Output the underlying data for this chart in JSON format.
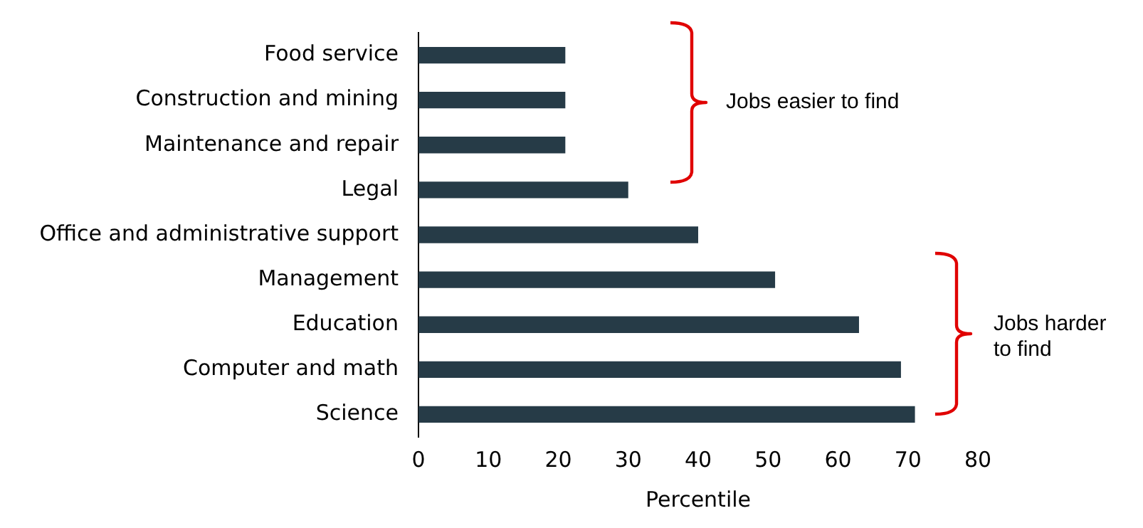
{
  "chart_data": {
    "type": "bar",
    "orientation": "horizontal",
    "xlabel": "Percentile",
    "categories": [
      "Food service",
      "Construction and mining",
      "Maintenance and repair",
      "Legal",
      "Office and administrative support",
      "Management",
      "Education",
      "Computer and math",
      "Science"
    ],
    "values": [
      21,
      21,
      21,
      30,
      40,
      51,
      63,
      69,
      71
    ],
    "color": "#263b47",
    "xlim": [
      0,
      80
    ],
    "xticks": [
      0,
      10,
      20,
      30,
      40,
      50,
      60,
      70,
      80
    ],
    "grid": false,
    "annotations": [
      "Jobs easier to find",
      "Jobs harder\nto find"
    ]
  }
}
